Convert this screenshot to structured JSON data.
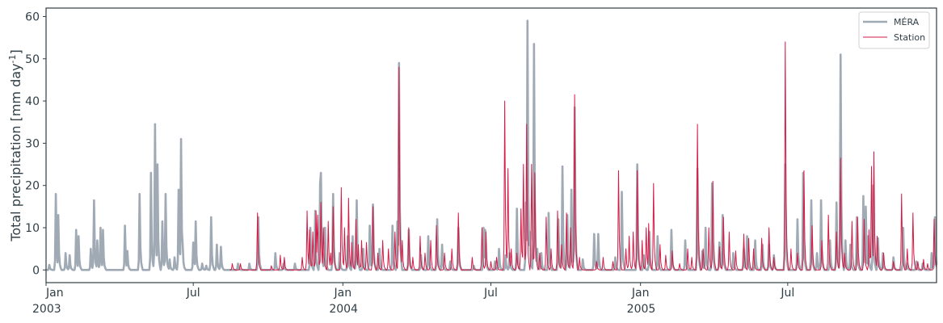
{
  "chart_data": {
    "type": "line",
    "title": "",
    "xlabel": "",
    "ylabel": "Total precipitation [mm day",
    "ylabel_sup": "-1",
    "ylabel_close": "]",
    "xlim": [
      "2003-01-01",
      "2005-12-31"
    ],
    "ylim": [
      -3,
      62
    ],
    "yticks": [
      0,
      10,
      20,
      30,
      40,
      50,
      60
    ],
    "xticks": [
      {
        "date": "2003-01-01",
        "label": "Jan",
        "year": "2003"
      },
      {
        "date": "2003-07-01",
        "label": "Jul",
        "year": ""
      },
      {
        "date": "2004-01-01",
        "label": "Jan",
        "year": "2004"
      },
      {
        "date": "2004-07-01",
        "label": "Jul",
        "year": ""
      },
      {
        "date": "2005-01-01",
        "label": "Jan",
        "year": "2005"
      },
      {
        "date": "2005-07-01",
        "label": "Jul",
        "year": ""
      }
    ],
    "grid": false,
    "legend_position": "top-right",
    "series": [
      {
        "name": "MÉRA",
        "color": "#a0aab5",
        "style": "thick",
        "start": "2003-01-01",
        "end": "2005-12-31",
        "peaks": [
          [
            "2003-01-05",
            1.2
          ],
          [
            "2003-01-13",
            18
          ],
          [
            "2003-01-16",
            13
          ],
          [
            "2003-01-25",
            4
          ],
          [
            "2003-01-30",
            3.5
          ],
          [
            "2003-02-07",
            9.5
          ],
          [
            "2003-02-10",
            8
          ],
          [
            "2003-02-25",
            5
          ],
          [
            "2003-03-01",
            16.5
          ],
          [
            "2003-03-05",
            7
          ],
          [
            "2003-03-09",
            10
          ],
          [
            "2003-03-12",
            9.5
          ],
          [
            "2003-04-08",
            10.5
          ],
          [
            "2003-04-11",
            4.5
          ],
          [
            "2003-04-26",
            18
          ],
          [
            "2003-05-10",
            23
          ],
          [
            "2003-05-15",
            34.5
          ],
          [
            "2003-05-18",
            25
          ],
          [
            "2003-05-24",
            11.5
          ],
          [
            "2003-05-28",
            18
          ],
          [
            "2003-06-02",
            2.5
          ],
          [
            "2003-06-08",
            3
          ],
          [
            "2003-06-13",
            19
          ],
          [
            "2003-06-16",
            31
          ],
          [
            "2003-06-18",
            6
          ],
          [
            "2003-07-01",
            6.5
          ],
          [
            "2003-07-04",
            11.5
          ],
          [
            "2003-07-12",
            1.5
          ],
          [
            "2003-07-17",
            1
          ],
          [
            "2003-07-23",
            12.5
          ],
          [
            "2003-07-30",
            6
          ],
          [
            "2003-08-04",
            5.5
          ],
          [
            "2003-08-25",
            1.5
          ],
          [
            "2003-09-08",
            1.5
          ],
          [
            "2003-09-19",
            12.5
          ],
          [
            "2003-10-10",
            4
          ],
          [
            "2003-10-20",
            1.5
          ],
          [
            "2003-11-03",
            1.5
          ],
          [
            "2003-11-22",
            10
          ],
          [
            "2003-11-28",
            14
          ],
          [
            "2003-12-04",
            20.5
          ],
          [
            "2003-12-05",
            23
          ],
          [
            "2003-12-10",
            10
          ],
          [
            "2003-12-20",
            18
          ],
          [
            "2003-12-28",
            4
          ],
          [
            "2004-01-07",
            8
          ],
          [
            "2004-01-13",
            8
          ],
          [
            "2004-01-18",
            16.5
          ],
          [
            "2004-01-26",
            5
          ],
          [
            "2004-02-03",
            10.5
          ],
          [
            "2004-02-07",
            15.5
          ],
          [
            "2004-02-15",
            5
          ],
          [
            "2004-03-02",
            10.5
          ],
          [
            "2004-03-08",
            11.5
          ],
          [
            "2004-03-10",
            49
          ],
          [
            "2004-03-22",
            9.5
          ],
          [
            "2004-04-06",
            3.5
          ],
          [
            "2004-04-15",
            8
          ],
          [
            "2004-04-26",
            12
          ],
          [
            "2004-05-02",
            6
          ],
          [
            "2004-05-12",
            2
          ],
          [
            "2004-05-22",
            10
          ],
          [
            "2004-06-10",
            1
          ],
          [
            "2004-06-22",
            10
          ],
          [
            "2004-06-24",
            9.5
          ],
          [
            "2004-07-06",
            2
          ],
          [
            "2004-07-11",
            5
          ],
          [
            "2004-07-19",
            3.5
          ],
          [
            "2004-07-24",
            4
          ],
          [
            "2004-08-02",
            14.5
          ],
          [
            "2004-08-13",
            16
          ],
          [
            "2004-08-15",
            59
          ],
          [
            "2004-08-18",
            9
          ],
          [
            "2004-08-23",
            53.5
          ],
          [
            "2004-08-27",
            5
          ],
          [
            "2004-09-01",
            4
          ],
          [
            "2004-09-10",
            13.5
          ],
          [
            "2004-09-22",
            12
          ],
          [
            "2004-09-27",
            24.5
          ],
          [
            "2004-10-03",
            13
          ],
          [
            "2004-10-08",
            19
          ],
          [
            "2004-10-12",
            38.5
          ],
          [
            "2004-10-22",
            2.5
          ],
          [
            "2004-11-05",
            8.5
          ],
          [
            "2004-11-10",
            8.5
          ],
          [
            "2004-12-01",
            3
          ],
          [
            "2004-12-09",
            18.5
          ],
          [
            "2004-12-28",
            25
          ],
          [
            "2005-01-05",
            3.5
          ],
          [
            "2005-01-12",
            9
          ],
          [
            "2005-01-22",
            8
          ],
          [
            "2005-02-08",
            9.5
          ],
          [
            "2005-02-25",
            7
          ],
          [
            "2005-03-12",
            24
          ],
          [
            "2005-03-18",
            4.5
          ],
          [
            "2005-03-22",
            10
          ],
          [
            "2005-03-30",
            20.5
          ],
          [
            "2005-04-08",
            6.5
          ],
          [
            "2005-04-12",
            13
          ],
          [
            "2005-04-25",
            4
          ],
          [
            "2005-05-08",
            5
          ],
          [
            "2005-05-12",
            8
          ],
          [
            "2005-05-22",
            7
          ],
          [
            "2005-05-31",
            6
          ],
          [
            "2005-06-08",
            6
          ],
          [
            "2005-06-14",
            3.5
          ],
          [
            "2005-06-28",
            25
          ],
          [
            "2005-07-13",
            12
          ],
          [
            "2005-07-20",
            23
          ],
          [
            "2005-07-30",
            16.5
          ],
          [
            "2005-08-06",
            4
          ],
          [
            "2005-08-11",
            16.5
          ],
          [
            "2005-08-22",
            7
          ],
          [
            "2005-08-30",
            16
          ],
          [
            "2005-09-04",
            51
          ],
          [
            "2005-09-10",
            7
          ],
          [
            "2005-09-16",
            6
          ],
          [
            "2005-09-24",
            12.5
          ],
          [
            "2005-10-02",
            17.5
          ],
          [
            "2005-10-05",
            15
          ],
          [
            "2005-10-08",
            8
          ],
          [
            "2005-10-14",
            20
          ],
          [
            "2005-10-20",
            7.5
          ],
          [
            "2005-10-26",
            4
          ],
          [
            "2005-11-08",
            3
          ],
          [
            "2005-11-20",
            10
          ],
          [
            "2005-11-25",
            1.5
          ],
          [
            "2005-12-06",
            2
          ],
          [
            "2005-12-14",
            1.5
          ],
          [
            "2005-12-25",
            4
          ],
          [
            "2005-12-29",
            12.5
          ]
        ]
      },
      {
        "name": "Station",
        "color": "#d41a45",
        "style": "thin",
        "start": "2003-08-15",
        "end": "2005-12-31",
        "peaks": [
          [
            "2003-08-18",
            1.5
          ],
          [
            "2003-08-28",
            1.5
          ],
          [
            "2003-09-18",
            13.5
          ],
          [
            "2003-10-05",
            1
          ],
          [
            "2003-10-16",
            3.5
          ],
          [
            "2003-10-21",
            3
          ],
          [
            "2003-11-12",
            3
          ],
          [
            "2003-11-18",
            14
          ],
          [
            "2003-11-21",
            9.5
          ],
          [
            "2003-11-25",
            9
          ],
          [
            "2003-11-29",
            14
          ],
          [
            "2003-12-01",
            13
          ],
          [
            "2003-12-05",
            16
          ],
          [
            "2003-12-08",
            10
          ],
          [
            "2003-12-14",
            11.5
          ],
          [
            "2003-12-17",
            4
          ],
          [
            "2003-12-20",
            15
          ],
          [
            "2003-12-30",
            19.5
          ],
          [
            "2004-01-03",
            10
          ],
          [
            "2004-01-08",
            17
          ],
          [
            "2004-01-12",
            6.5
          ],
          [
            "2004-01-17",
            12
          ],
          [
            "2004-01-20",
            6
          ],
          [
            "2004-01-24",
            7
          ],
          [
            "2004-01-30",
            6.5
          ],
          [
            "2004-02-07",
            15
          ],
          [
            "2004-02-13",
            4
          ],
          [
            "2004-02-19",
            7
          ],
          [
            "2004-02-26",
            5
          ],
          [
            "2004-03-05",
            9
          ],
          [
            "2004-03-10",
            48
          ],
          [
            "2004-03-14",
            7
          ],
          [
            "2004-03-22",
            10
          ],
          [
            "2004-03-27",
            3
          ],
          [
            "2004-04-05",
            8
          ],
          [
            "2004-04-11",
            4
          ],
          [
            "2004-04-18",
            7
          ],
          [
            "2004-04-25",
            10.5
          ],
          [
            "2004-05-05",
            4
          ],
          [
            "2004-05-14",
            5
          ],
          [
            "2004-05-22",
            13.5
          ],
          [
            "2004-06-08",
            3
          ],
          [
            "2004-06-20",
            10
          ],
          [
            "2004-06-25",
            9
          ],
          [
            "2004-07-01",
            2
          ],
          [
            "2004-07-08",
            3
          ],
          [
            "2004-07-18",
            40
          ],
          [
            "2004-07-22",
            24
          ],
          [
            "2004-07-26",
            5
          ],
          [
            "2004-08-02",
            4
          ],
          [
            "2004-08-07",
            14.5
          ],
          [
            "2004-08-10",
            25
          ],
          [
            "2004-08-14",
            34.5
          ],
          [
            "2004-08-20",
            25
          ],
          [
            "2004-08-24",
            23
          ],
          [
            "2004-08-30",
            4
          ],
          [
            "2004-09-07",
            12.5
          ],
          [
            "2004-09-13",
            5
          ],
          [
            "2004-09-21",
            14
          ],
          [
            "2004-09-26",
            6
          ],
          [
            "2004-10-02",
            13.5
          ],
          [
            "2004-10-07",
            10
          ],
          [
            "2004-10-12",
            41.5
          ],
          [
            "2004-10-18",
            3
          ],
          [
            "2004-11-08",
            2
          ],
          [
            "2004-11-16",
            3
          ],
          [
            "2004-11-28",
            2
          ],
          [
            "2004-12-05",
            23.5
          ],
          [
            "2004-12-14",
            5
          ],
          [
            "2004-12-18",
            8
          ],
          [
            "2004-12-23",
            9
          ],
          [
            "2004-12-28",
            23.5
          ],
          [
            "2005-01-03",
            7
          ],
          [
            "2005-01-08",
            10
          ],
          [
            "2005-01-11",
            11
          ],
          [
            "2005-01-17",
            20.5
          ],
          [
            "2005-01-25",
            6
          ],
          [
            "2005-02-01",
            3.5
          ],
          [
            "2005-02-09",
            4.5
          ],
          [
            "2005-02-18",
            1.5
          ],
          [
            "2005-02-28",
            5
          ],
          [
            "2005-03-05",
            3
          ],
          [
            "2005-03-12",
            34.5
          ],
          [
            "2005-03-19",
            5
          ],
          [
            "2005-03-26",
            10
          ],
          [
            "2005-03-31",
            21
          ],
          [
            "2005-04-08",
            5.5
          ],
          [
            "2005-04-13",
            12.5
          ],
          [
            "2005-04-20",
            9
          ],
          [
            "2005-04-28",
            4.5
          ],
          [
            "2005-05-08",
            8.5
          ],
          [
            "2005-05-14",
            7.5
          ],
          [
            "2005-05-20",
            5
          ],
          [
            "2005-05-30",
            7.5
          ],
          [
            "2005-06-08",
            10
          ],
          [
            "2005-06-14",
            3
          ],
          [
            "2005-06-28",
            54
          ],
          [
            "2005-07-05",
            5
          ],
          [
            "2005-07-13",
            4
          ],
          [
            "2005-07-21",
            23.5
          ],
          [
            "2005-07-31",
            10.5
          ],
          [
            "2005-08-12",
            7
          ],
          [
            "2005-08-20",
            13
          ],
          [
            "2005-08-30",
            9
          ],
          [
            "2005-09-04",
            26.5
          ],
          [
            "2005-09-09",
            4
          ],
          [
            "2005-09-18",
            11.5
          ],
          [
            "2005-09-25",
            12.5
          ],
          [
            "2005-10-03",
            12
          ],
          [
            "2005-10-09",
            9.5
          ],
          [
            "2005-10-12",
            24.5
          ],
          [
            "2005-10-15",
            28
          ],
          [
            "2005-10-19",
            8
          ],
          [
            "2005-10-27",
            4
          ],
          [
            "2005-11-08",
            2
          ],
          [
            "2005-11-18",
            18
          ],
          [
            "2005-11-25",
            5
          ],
          [
            "2005-12-02",
            13.5
          ],
          [
            "2005-12-08",
            2
          ],
          [
            "2005-12-15",
            2.5
          ],
          [
            "2005-12-20",
            1.5
          ],
          [
            "2005-12-28",
            12
          ]
        ]
      }
    ]
  }
}
